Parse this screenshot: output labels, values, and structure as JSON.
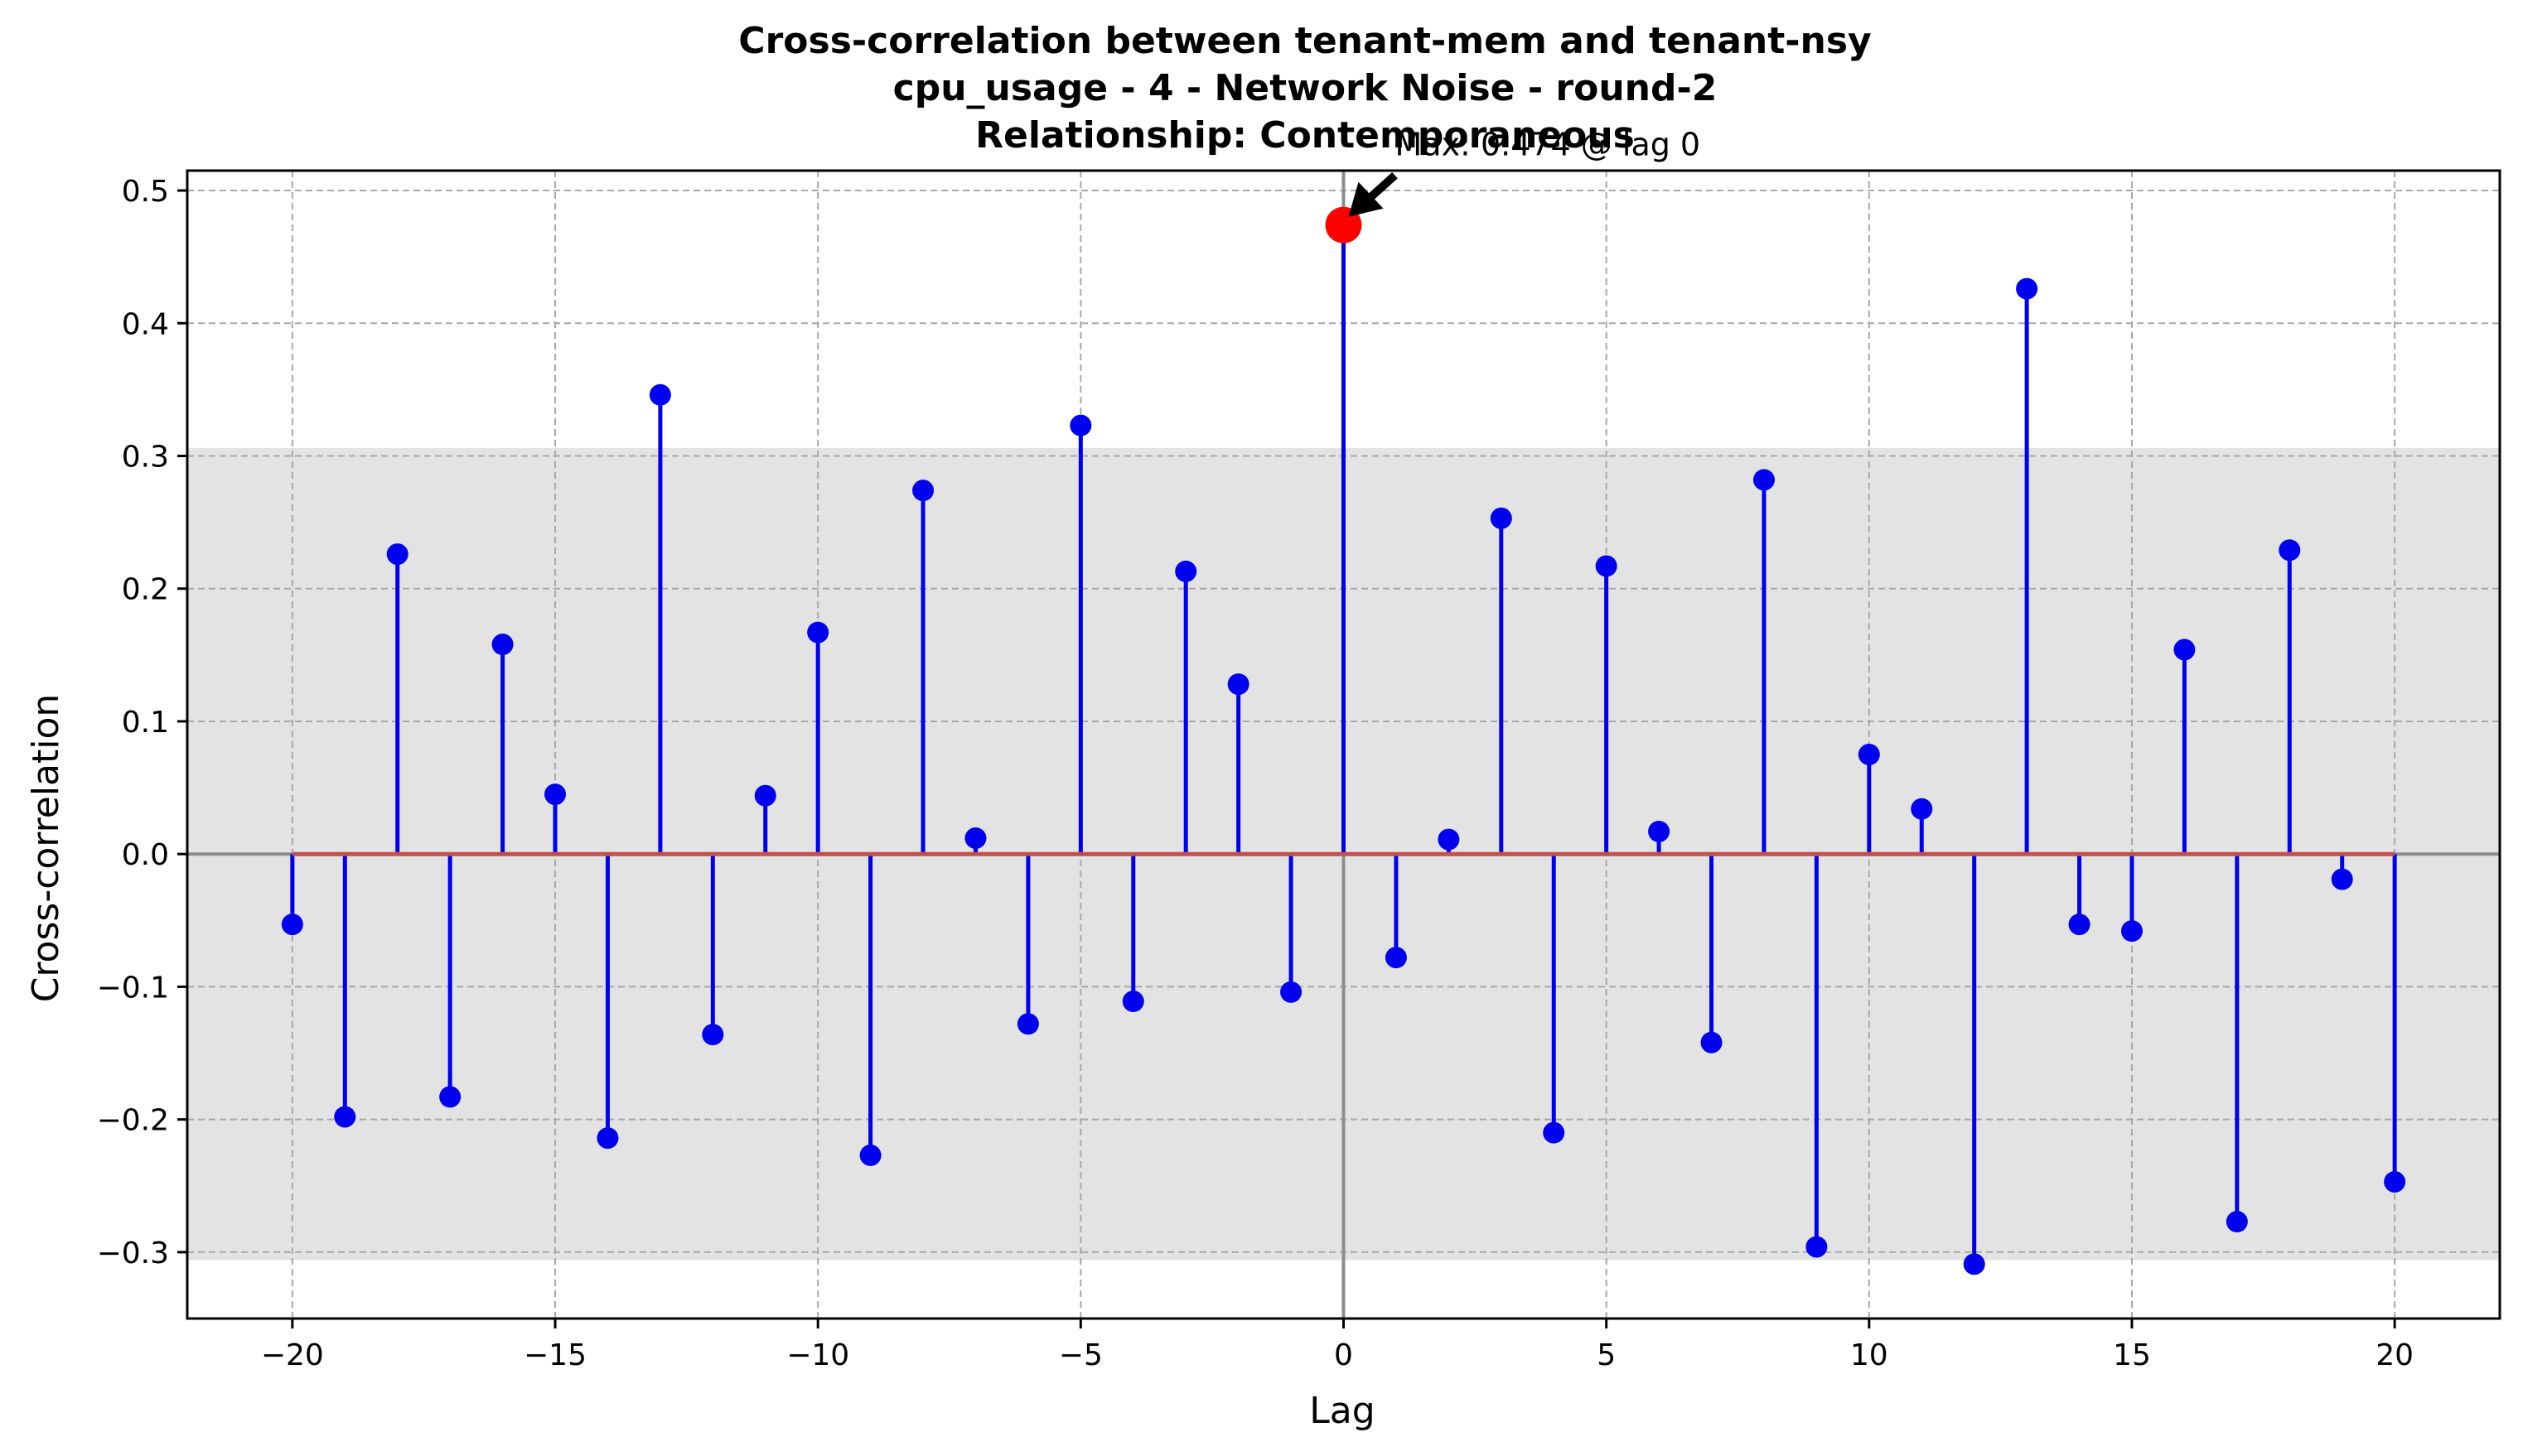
{
  "chart_data": {
    "type": "stem",
    "title_lines": [
      "Cross-correlation between tenant-mem and tenant-nsy",
      "cpu_usage - 4 - Network Noise - round-2",
      "Relationship: Contemporaneous"
    ],
    "xlabel": "Lag",
    "ylabel": "Cross-correlation",
    "xlim": [
      -22,
      22
    ],
    "ylim": [
      -0.35,
      0.515
    ],
    "x_ticks": [
      -20,
      -15,
      -10,
      -5,
      0,
      5,
      10,
      15,
      20
    ],
    "x_tick_labels": [
      "−20",
      "−15",
      "−10",
      "−5",
      "0",
      "5",
      "10",
      "15",
      "20"
    ],
    "y_ticks": [
      -0.3,
      -0.2,
      -0.1,
      0.0,
      0.1,
      0.2,
      0.3,
      0.4,
      0.5
    ],
    "y_tick_labels": [
      "−0.3",
      "−0.2",
      "−0.1",
      "0.0",
      "0.1",
      "0.2",
      "0.3",
      "0.4",
      "0.5"
    ],
    "grid": true,
    "confidence_band": 0.306,
    "lags": [
      -20,
      -19,
      -18,
      -17,
      -16,
      -15,
      -14,
      -13,
      -12,
      -11,
      -10,
      -9,
      -8,
      -7,
      -6,
      -5,
      -4,
      -3,
      -2,
      -1,
      0,
      1,
      2,
      3,
      4,
      5,
      6,
      7,
      8,
      9,
      10,
      11,
      12,
      13,
      14,
      15,
      16,
      17,
      18,
      19,
      20
    ],
    "values": [
      -0.053,
      -0.198,
      0.226,
      -0.183,
      0.158,
      0.045,
      -0.214,
      0.346,
      -0.136,
      0.044,
      0.167,
      -0.227,
      0.274,
      0.012,
      -0.128,
      0.323,
      -0.111,
      0.213,
      0.128,
      -0.104,
      0.474,
      -0.078,
      0.011,
      0.253,
      -0.21,
      0.217,
      0.017,
      -0.142,
      0.282,
      -0.296,
      0.075,
      0.034,
      -0.309,
      0.426,
      -0.053,
      -0.058,
      0.154,
      -0.277,
      0.229,
      -0.019,
      -0.247
    ],
    "max_annotation": {
      "text": "Max: 0.474 @ lag 0",
      "lag": 0,
      "value": 0.474
    },
    "colors": {
      "stem": "#0000ee",
      "marker": "#0000ee",
      "baseline": "#c0504d",
      "max_marker": "#ff0000",
      "band": "#e3e3e3",
      "zero_lines": "#8c8c8c",
      "grid": "#a8a8a8"
    }
  }
}
